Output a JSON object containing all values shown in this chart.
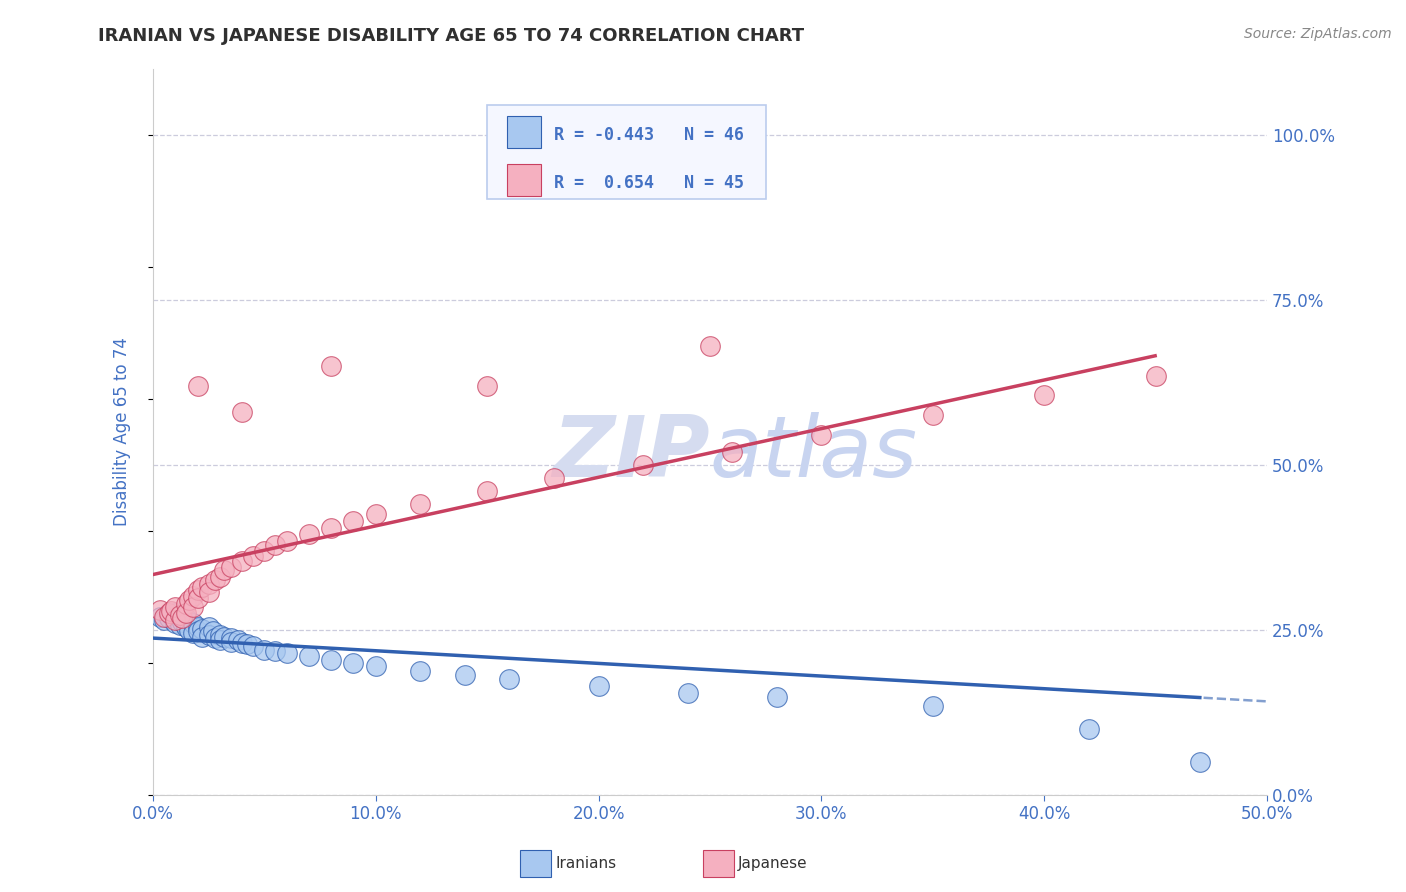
{
  "title": "IRANIAN VS JAPANESE DISABILITY AGE 65 TO 74 CORRELATION CHART",
  "source": "Source: ZipAtlas.com",
  "ylabel": "Disability Age 65 to 74",
  "xlim": [
    0.0,
    0.5
  ],
  "ylim": [
    0.0,
    1.1
  ],
  "xticks": [
    0.0,
    0.1,
    0.2,
    0.3,
    0.4,
    0.5
  ],
  "xticklabels": [
    "0.0%",
    "10.0%",
    "20.0%",
    "30.0%",
    "40.0%",
    "50.0%"
  ],
  "ytick_positions": [
    0.0,
    0.25,
    0.5,
    0.75,
    1.0
  ],
  "ytick_labels": [
    "0.0%",
    "25.0%",
    "50.0%",
    "75.0%",
    "100.0%"
  ],
  "iranian_R": -0.443,
  "iranian_N": 46,
  "japanese_R": 0.654,
  "japanese_N": 45,
  "iranian_color": "#A8C8F0",
  "japanese_color": "#F5B0C0",
  "iranian_line_color": "#3060B0",
  "japanese_line_color": "#C84060",
  "background_color": "#FFFFFF",
  "grid_color": "#CCCCDD",
  "title_color": "#303030",
  "tick_color": "#4472C4",
  "watermark_color": "#D5DCF0",
  "legend_bg": "#F5F7FF",
  "legend_border": "#BBCCEE",
  "source_color": "#888888",
  "iranian_x": [
    0.003,
    0.005,
    0.007,
    0.008,
    0.01,
    0.01,
    0.012,
    0.013,
    0.015,
    0.015,
    0.016,
    0.018,
    0.018,
    0.02,
    0.02,
    0.022,
    0.022,
    0.025,
    0.025,
    0.027,
    0.028,
    0.03,
    0.03,
    0.032,
    0.035,
    0.035,
    0.038,
    0.04,
    0.042,
    0.045,
    0.05,
    0.055,
    0.06,
    0.07,
    0.08,
    0.09,
    0.1,
    0.12,
    0.14,
    0.16,
    0.2,
    0.24,
    0.28,
    0.35,
    0.42,
    0.47
  ],
  "iranian_y": [
    0.27,
    0.265,
    0.268,
    0.272,
    0.26,
    0.275,
    0.258,
    0.262,
    0.255,
    0.268,
    0.25,
    0.26,
    0.245,
    0.255,
    0.248,
    0.252,
    0.24,
    0.255,
    0.242,
    0.248,
    0.238,
    0.242,
    0.235,
    0.24,
    0.238,
    0.232,
    0.235,
    0.23,
    0.228,
    0.225,
    0.22,
    0.218,
    0.215,
    0.21,
    0.205,
    0.2,
    0.195,
    0.188,
    0.182,
    0.175,
    0.165,
    0.155,
    0.148,
    0.135,
    0.1,
    0.05
  ],
  "japanese_x": [
    0.003,
    0.005,
    0.007,
    0.008,
    0.01,
    0.01,
    0.012,
    0.013,
    0.015,
    0.015,
    0.016,
    0.018,
    0.018,
    0.02,
    0.02,
    0.022,
    0.025,
    0.025,
    0.028,
    0.03,
    0.032,
    0.035,
    0.04,
    0.045,
    0.05,
    0.055,
    0.06,
    0.07,
    0.08,
    0.09,
    0.1,
    0.12,
    0.15,
    0.18,
    0.22,
    0.26,
    0.3,
    0.35,
    0.4,
    0.45,
    0.02,
    0.04,
    0.08,
    0.15,
    0.25
  ],
  "japanese_y": [
    0.28,
    0.27,
    0.275,
    0.278,
    0.265,
    0.285,
    0.272,
    0.268,
    0.29,
    0.275,
    0.295,
    0.302,
    0.285,
    0.31,
    0.298,
    0.315,
    0.32,
    0.308,
    0.325,
    0.33,
    0.34,
    0.345,
    0.355,
    0.362,
    0.37,
    0.378,
    0.385,
    0.395,
    0.405,
    0.415,
    0.425,
    0.44,
    0.46,
    0.48,
    0.5,
    0.52,
    0.545,
    0.575,
    0.605,
    0.635,
    0.62,
    0.58,
    0.65,
    0.62,
    0.68
  ]
}
